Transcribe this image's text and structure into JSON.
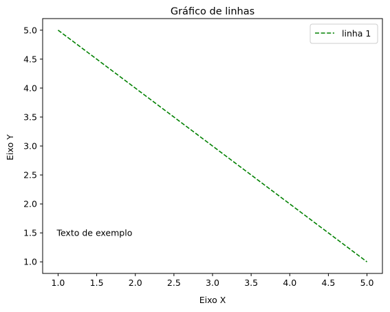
{
  "chart_data": {
    "type": "line",
    "title": "Gráfico de linhas",
    "xlabel": "Eixo X",
    "ylabel": "Eixo Y",
    "xlim": [
      0.8,
      5.2
    ],
    "ylim": [
      0.8,
      5.2
    ],
    "xticks": [
      1.0,
      1.5,
      2.0,
      2.5,
      3.0,
      3.5,
      4.0,
      4.5,
      5.0
    ],
    "yticks": [
      1.0,
      1.5,
      2.0,
      2.5,
      3.0,
      3.5,
      4.0,
      4.5,
      5.0
    ],
    "xtick_labels": [
      "1.0",
      "1.5",
      "2.0",
      "2.5",
      "3.0",
      "3.5",
      "4.0",
      "4.5",
      "5.0"
    ],
    "ytick_labels": [
      "1.0",
      "1.5",
      "2.0",
      "2.5",
      "3.0",
      "3.5",
      "4.0",
      "4.5",
      "5.0"
    ],
    "grid": false,
    "legend_position": "top-right",
    "series": [
      {
        "name": "linha 1",
        "x": [
          1,
          2,
          3,
          4,
          5
        ],
        "y": [
          5,
          4,
          3,
          2,
          1
        ],
        "color": "#008000",
        "line_style": "dashed"
      }
    ],
    "annotations": [
      {
        "text": "Texto de exemplo",
        "x": 1.0,
        "y": 1.5
      }
    ]
  }
}
